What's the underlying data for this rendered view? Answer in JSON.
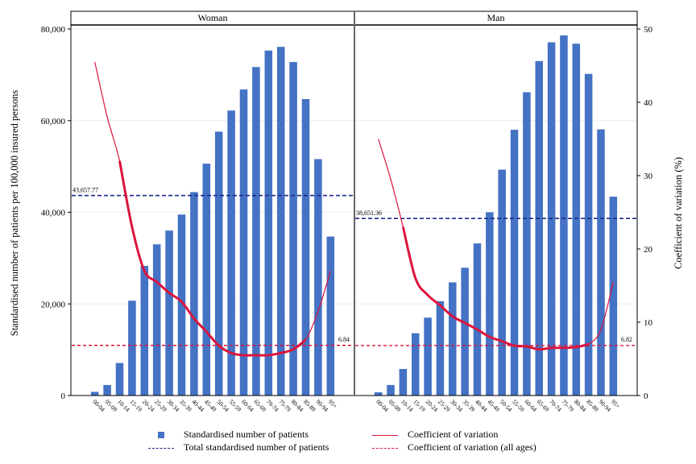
{
  "chart_data": {
    "type": "bar",
    "categories": [
      "00-04",
      "05-09",
      "10-14",
      "15-19",
      "20-24",
      "25-29",
      "30-34",
      "35-39",
      "40-44",
      "45-49",
      "50-54",
      "55-59",
      "60-64",
      "65-69",
      "70-74",
      "75-79",
      "80-84",
      "85-89",
      "90-94",
      "95+"
    ],
    "ylabel": "Standardised number of patients per 100,000 insured persons",
    "y2label": "Coefficient of variation (%)",
    "ylim": [
      0,
      80000
    ],
    "y2lim": [
      0,
      50
    ],
    "yticks": [
      "0",
      "20,000",
      "40,000",
      "60,000",
      "80,000"
    ],
    "y2ticks": [
      "0",
      "10",
      "20",
      "30",
      "40",
      "50"
    ],
    "grid": "horizontal",
    "panels": [
      {
        "label": "Woman",
        "bars": [
          800,
          2300,
          7100,
          20700,
          28300,
          33000,
          36000,
          39500,
          44400,
          50600,
          57600,
          62200,
          66800,
          71700,
          75300,
          76100,
          72800,
          64700,
          51600,
          34700
        ],
        "cv": [
          45.5,
          38.0,
          32.0,
          23.0,
          17.0,
          15.5,
          14.0,
          12.8,
          10.5,
          8.7,
          6.8,
          5.8,
          5.5,
          5.5,
          5.5,
          5.8,
          6.3,
          7.6,
          11.5,
          17.0
        ],
        "cv_bold_from": 2,
        "cv_bold_to": 17,
        "total": 43657.77,
        "total_label": "43,657.77",
        "cv_all": 6.84,
        "cv_all_label": "6.84"
      },
      {
        "label": "Man",
        "bars": [
          700,
          2300,
          5800,
          13600,
          17000,
          20600,
          24700,
          27900,
          33200,
          40000,
          49300,
          58000,
          66200,
          73000,
          77100,
          78600,
          76800,
          70200,
          58100,
          43400
        ],
        "cv": [
          35.0,
          29.5,
          23.0,
          16.0,
          13.7,
          12.3,
          10.8,
          9.9,
          9.0,
          8.0,
          7.4,
          6.8,
          6.7,
          6.3,
          6.5,
          6.5,
          6.6,
          7.0,
          9.0,
          15.5
        ],
        "cv_bold_from": 2,
        "cv_bold_to": 17,
        "total": 38651.36,
        "total_label": "38,651.36",
        "cv_all": 6.82,
        "cv_all_label": "6.82"
      }
    ],
    "legend": [
      {
        "label": "Standardised number of patients",
        "symbol": "bar"
      },
      {
        "label": "Coefficient of variation",
        "symbol": "solid-red"
      },
      {
        "label": "Total standardised number of patients",
        "symbol": "dash-blue"
      },
      {
        "label": "Coefficient of variation (all ages)",
        "symbol": "dash-red"
      }
    ],
    "legend_position": "bottom",
    "colors": {
      "bar": "#4472c4",
      "cv": "#dc143c",
      "total": "#1f2a8a",
      "cv_all": "#dc143c"
    }
  }
}
